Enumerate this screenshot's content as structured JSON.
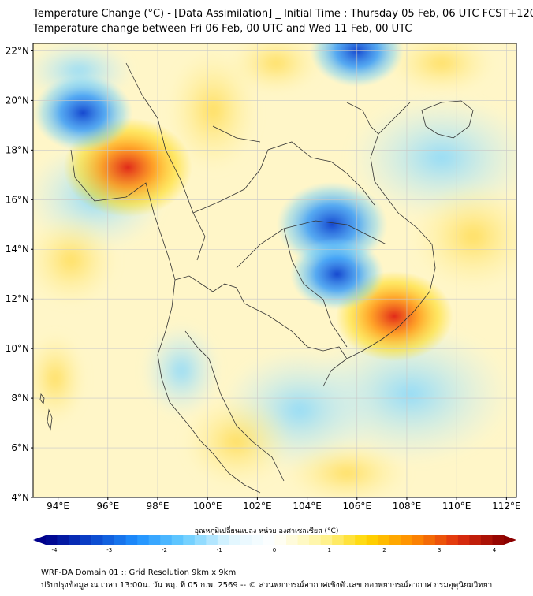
{
  "header": {
    "line1": "Temperature Change (°C) - [Data Assimilation] _ Initial Time : Thursday 05 Feb, 06 UTC FCST+120",
    "line2": "Temperature change between Fri 06 Feb, 00 UTC and Wed 11 Feb, 00 UTC"
  },
  "map": {
    "lat_labels": [
      "22°N",
      "20°N",
      "18°N",
      "16°N",
      "14°N",
      "12°N",
      "10°N",
      "8°N",
      "6°N",
      "4°N"
    ],
    "lon_labels": [
      "94°E",
      "96°E",
      "98°E",
      "100°E",
      "102°E",
      "104°E",
      "106°E",
      "108°E",
      "110°E",
      "112°E"
    ],
    "lat_range": [
      4,
      22.3
    ],
    "lon_range": [
      93,
      112.4
    ],
    "hotspots": [
      {
        "lon": 96.8,
        "lat": 17.3,
        "value": 3.2
      },
      {
        "lon": 107.5,
        "lat": 11.3,
        "value": 2.8
      },
      {
        "lon": 105.0,
        "lat": 15.0,
        "value": -2.6
      },
      {
        "lon": 105.2,
        "lat": 13.0,
        "value": -2.0
      },
      {
        "lon": 95.0,
        "lat": 19.5,
        "value": -2.2
      },
      {
        "lon": 106.0,
        "lat": 22.0,
        "value": -2.0
      }
    ]
  },
  "colorbar": {
    "title": "อุณหภูมิเปลี่ยนแปลง หน่วย องศาเซลเซียส (°C)",
    "ticks": [
      "-4",
      "-3",
      "-2",
      "-1",
      "0",
      "1",
      "2",
      "3",
      "4"
    ],
    "min": -4,
    "max": 4,
    "colors": [
      "#00008b",
      "#0b44cc",
      "#1e90ff",
      "#66ccff",
      "#dff6ff",
      "#ffffff",
      "#fff5a0",
      "#ffd700",
      "#ff8c00",
      "#e03010",
      "#8b0000"
    ]
  },
  "footer": {
    "line1": "WRF-DA Domain 01 :: Grid Resolution 9km x 9km",
    "line2": "ปรับปรุงข้อมูล ณ เวลา 13:00น. วัน พฤ. ที่ 05 ก.พ. 2569 -- © ส่วนพยากรณ์อากาศเชิงตัวเลข กองพยากรณ์อากาศ กรมอุตุนิยมวิทยา"
  }
}
